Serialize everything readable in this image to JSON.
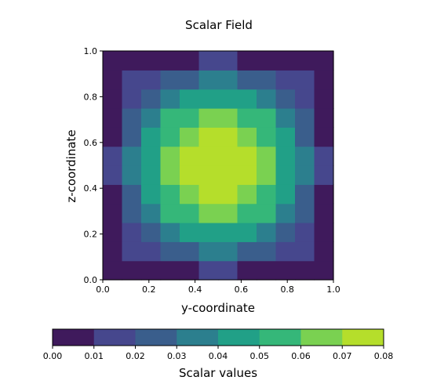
{
  "chart_data": {
    "type": "heatmap",
    "title": "Scalar Field",
    "xlabel": "y-coordinate",
    "ylabel": "z-coordinate",
    "xlim": [
      0.0,
      1.0
    ],
    "ylim": [
      0.0,
      1.0
    ],
    "xticks": [
      "0.0",
      "0.2",
      "0.4",
      "0.6",
      "0.8",
      "1.0"
    ],
    "yticks": [
      "0.0",
      "0.2",
      "0.4",
      "0.6",
      "0.8",
      "1.0"
    ],
    "grid": false,
    "field": "approximately 0.08 * sin(pi*y) * sin(pi*z), filled contours",
    "peak_value": 0.08,
    "colorbar": {
      "label": "Scalar values",
      "orientation": "horizontal",
      "position": "bottom",
      "levels": [
        0.0,
        0.01,
        0.02,
        0.03,
        0.04,
        0.05,
        0.06,
        0.07,
        0.08
      ],
      "tick_labels": [
        "0.00",
        "0.01",
        "0.02",
        "0.03",
        "0.04",
        "0.05",
        "0.06",
        "0.07",
        "0.08"
      ],
      "colors": [
        "#3f1a5c",
        "#46478d",
        "#3a5e8c",
        "#2c7f8e",
        "#21a087",
        "#35b779",
        "#7ad151",
        "#b5de2b",
        "#dde318"
      ]
    }
  }
}
